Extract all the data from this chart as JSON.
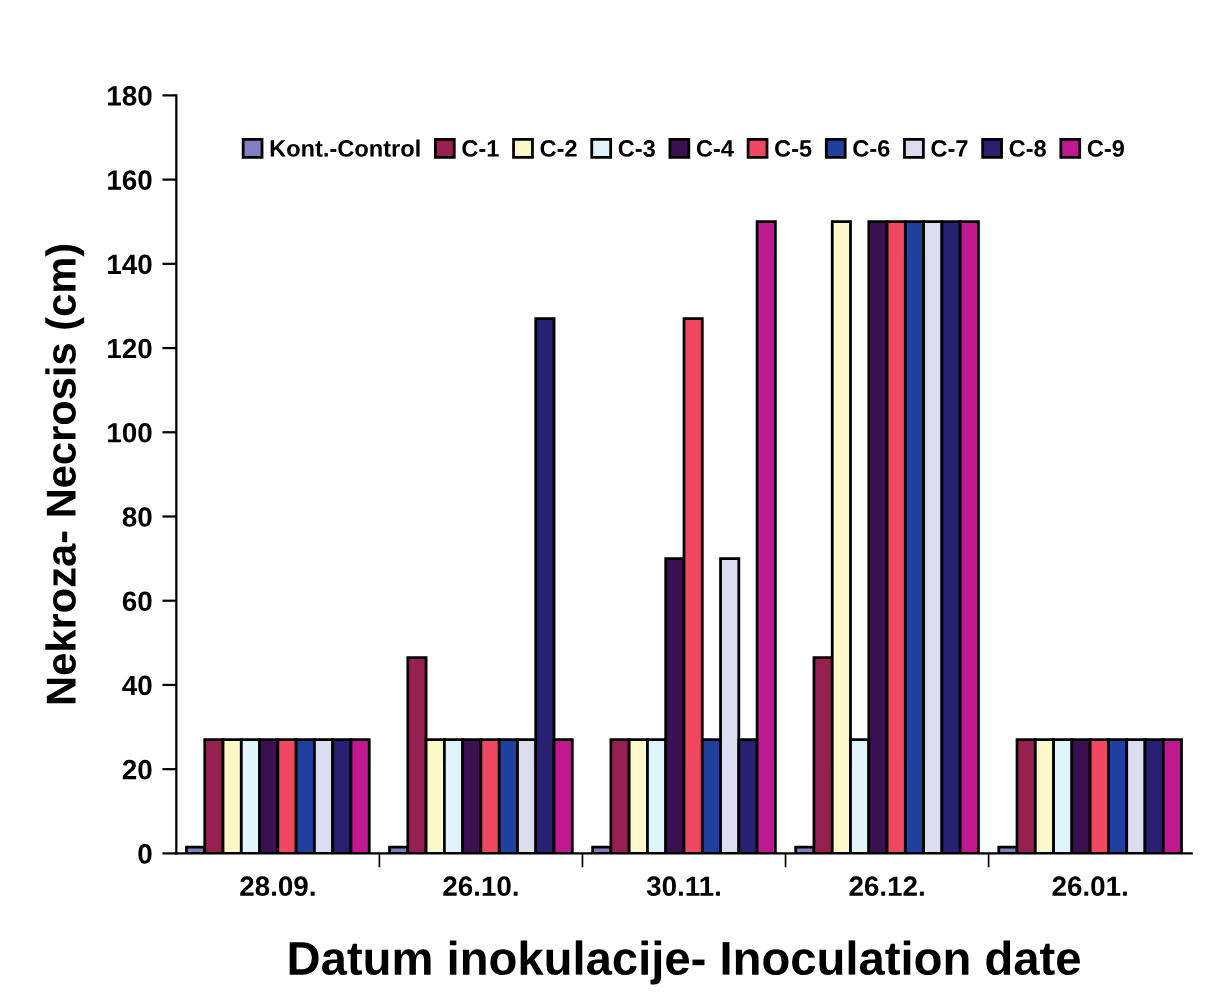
{
  "chart_data": {
    "type": "bar",
    "xlabel": "Datum inokulacije- Inoculation date",
    "ylabel": "Nekroza- Necrosis (cm)",
    "categories": [
      "28.09.",
      "26.10.",
      "30.11.",
      "26.12.",
      "26.01."
    ],
    "series": [
      {
        "name": "Kont.-Control",
        "color": "#8080c0",
        "values": [
          1.5,
          1.5,
          1.5,
          1.5,
          1.5
        ]
      },
      {
        "name": "C-1",
        "color": "#962050",
        "values": [
          27,
          46.5,
          27,
          46.5,
          27
        ]
      },
      {
        "name": "C-2",
        "color": "#fff8c8",
        "values": [
          27,
          27,
          27,
          150,
          27
        ]
      },
      {
        "name": "C-3",
        "color": "#e0f4fb",
        "values": [
          27,
          27,
          27,
          27,
          27
        ]
      },
      {
        "name": "C-4",
        "color": "#3a1050",
        "values": [
          27,
          27,
          70,
          150,
          27
        ]
      },
      {
        "name": "C-5",
        "color": "#f04860",
        "values": [
          27,
          27,
          127,
          150,
          27
        ]
      },
      {
        "name": "C-6",
        "color": "#2040a0",
        "values": [
          27,
          27,
          27,
          150,
          27
        ]
      },
      {
        "name": "C-7",
        "color": "#dcdcf0",
        "values": [
          27,
          27,
          70,
          150,
          27
        ]
      },
      {
        "name": "C-8",
        "color": "#282070",
        "values": [
          27,
          127,
          27,
          150,
          27
        ]
      },
      {
        "name": "C-9",
        "color": "#c01890",
        "values": [
          27,
          27,
          150,
          150,
          27
        ]
      }
    ],
    "ylim": [
      0,
      180
    ],
    "yticks": [
      0,
      20,
      40,
      60,
      80,
      100,
      120,
      140,
      160,
      180
    ],
    "grid": false,
    "legend": "top"
  }
}
